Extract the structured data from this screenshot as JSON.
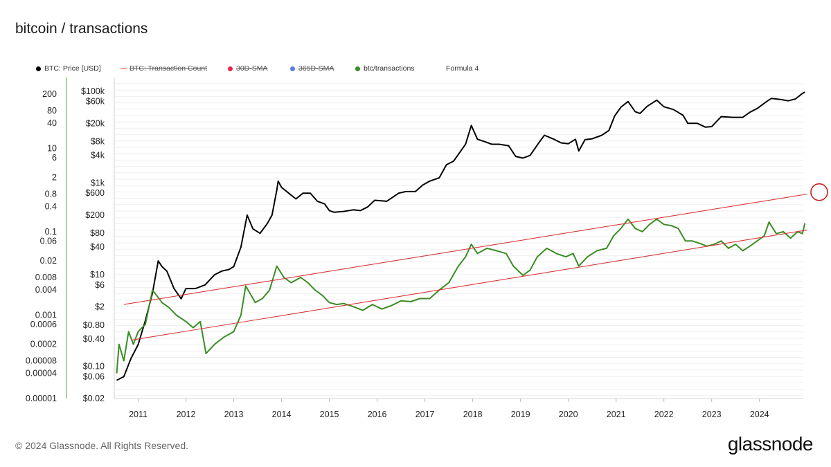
{
  "title": "bitcoin / transactions",
  "legend": [
    {
      "label": "BTC: Price [USD]",
      "color": "#000000",
      "marker": "dot",
      "struck": false
    },
    {
      "label": "BTC: Transaction Count",
      "color": "#f4a582",
      "marker": "dash",
      "struck": true
    },
    {
      "label": "30D-SMA",
      "color": "#e8254b",
      "marker": "dot",
      "struck": true
    },
    {
      "label": "365D-SMA",
      "color": "#5b7fe0",
      "marker": "dot",
      "struck": true
    },
    {
      "label": "btc/transactions",
      "color": "#3a8c24",
      "marker": "dot",
      "struck": false
    },
    {
      "label": "Formula 4",
      "color": "#ffffff",
      "marker": "none",
      "struck": false
    }
  ],
  "footer": "© 2024 Glassnode. All Rights Reserved.",
  "brand": "glassnode",
  "chart_data": {
    "type": "line",
    "x_ticks": [
      "2011",
      "2012",
      "2013",
      "2014",
      "2015",
      "2016",
      "2017",
      "2018",
      "2019",
      "2020",
      "2021",
      "2022",
      "2023",
      "2024"
    ],
    "xlim": [
      "2010-07",
      "2024-12"
    ],
    "y_left_ticks": [
      "200",
      "80",
      "40",
      "10",
      "6",
      "2",
      "0.8",
      "0.4",
      "0.1",
      "0.06",
      "0.02",
      "0.008",
      "0.004",
      "0.001",
      "0.0006",
      "0.0002",
      "0.00008",
      "0.00004",
      "0.00001"
    ],
    "y_left_range": [
      1e-05,
      500
    ],
    "y_price_ticks": [
      "$100k",
      "$60k",
      "$20k",
      "$8k",
      "$4k",
      "$1k",
      "$600",
      "$200",
      "$80",
      "$40",
      "$10",
      "$6",
      "$2",
      "$0.80",
      "$0.40",
      "$0.10",
      "$0.06",
      "$0.02"
    ],
    "y_price_range": [
      0.02,
      200000
    ],
    "scale": "log",
    "grid": true,
    "colors": {
      "price": "#000000",
      "ratio": "#3a8c24",
      "channel": "#d93636",
      "marker": "#cc1f1f"
    },
    "series": [
      {
        "name": "BTC: Price [USD]",
        "axis": "price",
        "points": [
          [
            2010.55,
            0.05
          ],
          [
            2010.7,
            0.06
          ],
          [
            2010.85,
            0.15
          ],
          [
            2011.0,
            0.3
          ],
          [
            2011.15,
            1.0
          ],
          [
            2011.3,
            4
          ],
          [
            2011.42,
            20
          ],
          [
            2011.5,
            15
          ],
          [
            2011.6,
            12
          ],
          [
            2011.75,
            5
          ],
          [
            2011.9,
            3
          ],
          [
            2012.0,
            5
          ],
          [
            2012.2,
            5
          ],
          [
            2012.4,
            6
          ],
          [
            2012.6,
            10
          ],
          [
            2012.75,
            12
          ],
          [
            2012.9,
            13
          ],
          [
            2013.0,
            15
          ],
          [
            2013.15,
            40
          ],
          [
            2013.28,
            200
          ],
          [
            2013.4,
            100
          ],
          [
            2013.55,
            80
          ],
          [
            2013.7,
            130
          ],
          [
            2013.8,
            200
          ],
          [
            2013.9,
            700
          ],
          [
            2013.93,
            1100
          ],
          [
            2014.0,
            800
          ],
          [
            2014.15,
            600
          ],
          [
            2014.3,
            450
          ],
          [
            2014.45,
            600
          ],
          [
            2014.6,
            600
          ],
          [
            2014.75,
            400
          ],
          [
            2014.9,
            350
          ],
          [
            2015.0,
            250
          ],
          [
            2015.1,
            230
          ],
          [
            2015.3,
            240
          ],
          [
            2015.5,
            260
          ],
          [
            2015.65,
            250
          ],
          [
            2015.8,
            300
          ],
          [
            2015.95,
            420
          ],
          [
            2016.2,
            400
          ],
          [
            2016.45,
            600
          ],
          [
            2016.6,
            650
          ],
          [
            2016.8,
            650
          ],
          [
            2016.95,
            900
          ],
          [
            2017.1,
            1100
          ],
          [
            2017.3,
            1300
          ],
          [
            2017.45,
            2500
          ],
          [
            2017.6,
            3000
          ],
          [
            2017.75,
            5000
          ],
          [
            2017.85,
            7000
          ],
          [
            2017.97,
            18000
          ],
          [
            2018.1,
            9000
          ],
          [
            2018.25,
            8000
          ],
          [
            2018.4,
            7000
          ],
          [
            2018.55,
            7000
          ],
          [
            2018.75,
            6500
          ],
          [
            2018.9,
            3800
          ],
          [
            2019.05,
            3500
          ],
          [
            2019.2,
            4000
          ],
          [
            2019.4,
            8000
          ],
          [
            2019.5,
            11000
          ],
          [
            2019.7,
            9000
          ],
          [
            2019.85,
            7500
          ],
          [
            2020.0,
            7200
          ],
          [
            2020.15,
            9000
          ],
          [
            2020.22,
            5000
          ],
          [
            2020.35,
            8800
          ],
          [
            2020.5,
            9200
          ],
          [
            2020.7,
            11000
          ],
          [
            2020.85,
            14000
          ],
          [
            2020.97,
            29000
          ],
          [
            2021.1,
            45000
          ],
          [
            2021.25,
            60000
          ],
          [
            2021.4,
            36000
          ],
          [
            2021.5,
            33000
          ],
          [
            2021.65,
            47000
          ],
          [
            2021.85,
            64000
          ],
          [
            2022.0,
            46000
          ],
          [
            2022.2,
            40000
          ],
          [
            2022.4,
            30000
          ],
          [
            2022.5,
            20000
          ],
          [
            2022.7,
            20000
          ],
          [
            2022.87,
            16500
          ],
          [
            2023.0,
            17000
          ],
          [
            2023.2,
            28000
          ],
          [
            2023.45,
            27000
          ],
          [
            2023.65,
            27000
          ],
          [
            2023.8,
            35000
          ],
          [
            2023.95,
            42000
          ],
          [
            2024.15,
            60000
          ],
          [
            2024.25,
            70000
          ],
          [
            2024.45,
            66000
          ],
          [
            2024.6,
            62000
          ],
          [
            2024.75,
            68000
          ],
          [
            2024.9,
            90000
          ],
          [
            2024.95,
            96000
          ]
        ]
      },
      {
        "name": "btc/transactions",
        "axis": "left",
        "points": [
          [
            2010.55,
            4e-05
          ],
          [
            2010.6,
            0.0002
          ],
          [
            2010.7,
            8e-05
          ],
          [
            2010.8,
            0.0004
          ],
          [
            2010.9,
            0.0002
          ],
          [
            2011.0,
            0.0004
          ],
          [
            2011.15,
            0.0006
          ],
          [
            2011.3,
            0.004
          ],
          [
            2011.5,
            0.002
          ],
          [
            2011.65,
            0.0015
          ],
          [
            2011.8,
            0.001
          ],
          [
            2012.0,
            0.0007
          ],
          [
            2012.15,
            0.0005
          ],
          [
            2012.3,
            0.0007
          ],
          [
            2012.42,
            0.00012
          ],
          [
            2012.6,
            0.0002
          ],
          [
            2012.8,
            0.0003
          ],
          [
            2013.0,
            0.0004
          ],
          [
            2013.15,
            0.001
          ],
          [
            2013.25,
            0.005
          ],
          [
            2013.45,
            0.002
          ],
          [
            2013.6,
            0.0025
          ],
          [
            2013.75,
            0.004
          ],
          [
            2013.9,
            0.015
          ],
          [
            2014.05,
            0.008
          ],
          [
            2014.2,
            0.006
          ],
          [
            2014.4,
            0.008
          ],
          [
            2014.55,
            0.006
          ],
          [
            2014.7,
            0.004
          ],
          [
            2014.85,
            0.003
          ],
          [
            2015.0,
            0.002
          ],
          [
            2015.15,
            0.0018
          ],
          [
            2015.3,
            0.0019
          ],
          [
            2015.5,
            0.0016
          ],
          [
            2015.7,
            0.0013
          ],
          [
            2015.9,
            0.0018
          ],
          [
            2016.1,
            0.0014
          ],
          [
            2016.3,
            0.0017
          ],
          [
            2016.5,
            0.0022
          ],
          [
            2016.7,
            0.0021
          ],
          [
            2016.9,
            0.0025
          ],
          [
            2017.1,
            0.0025
          ],
          [
            2017.3,
            0.004
          ],
          [
            2017.5,
            0.006
          ],
          [
            2017.7,
            0.015
          ],
          [
            2017.85,
            0.025
          ],
          [
            2017.97,
            0.05
          ],
          [
            2018.1,
            0.03
          ],
          [
            2018.3,
            0.04
          ],
          [
            2018.5,
            0.035
          ],
          [
            2018.7,
            0.03
          ],
          [
            2018.85,
            0.015
          ],
          [
            2019.05,
            0.009
          ],
          [
            2019.2,
            0.012
          ],
          [
            2019.35,
            0.025
          ],
          [
            2019.55,
            0.04
          ],
          [
            2019.75,
            0.03
          ],
          [
            2019.95,
            0.025
          ],
          [
            2020.1,
            0.03
          ],
          [
            2020.22,
            0.015
          ],
          [
            2020.4,
            0.025
          ],
          [
            2020.6,
            0.035
          ],
          [
            2020.8,
            0.04
          ],
          [
            2020.95,
            0.08
          ],
          [
            2021.1,
            0.12
          ],
          [
            2021.25,
            0.2
          ],
          [
            2021.4,
            0.12
          ],
          [
            2021.55,
            0.1
          ],
          [
            2021.7,
            0.15
          ],
          [
            2021.85,
            0.2
          ],
          [
            2022.0,
            0.15
          ],
          [
            2022.15,
            0.14
          ],
          [
            2022.3,
            0.12
          ],
          [
            2022.45,
            0.06
          ],
          [
            2022.6,
            0.06
          ],
          [
            2022.8,
            0.05
          ],
          [
            2022.9,
            0.045
          ],
          [
            2023.05,
            0.05
          ],
          [
            2023.2,
            0.06
          ],
          [
            2023.35,
            0.04
          ],
          [
            2023.5,
            0.05
          ],
          [
            2023.65,
            0.035
          ],
          [
            2023.8,
            0.045
          ],
          [
            2023.95,
            0.06
          ],
          [
            2024.1,
            0.08
          ],
          [
            2024.2,
            0.17
          ],
          [
            2024.35,
            0.09
          ],
          [
            2024.5,
            0.1
          ],
          [
            2024.65,
            0.07
          ],
          [
            2024.8,
            0.1
          ],
          [
            2024.9,
            0.09
          ],
          [
            2024.95,
            0.16
          ]
        ]
      },
      {
        "name": "channel-upper",
        "axis": "left",
        "points": [
          [
            2010.7,
            0.0018
          ],
          [
            2025.0,
            0.8
          ]
        ]
      },
      {
        "name": "channel-lower",
        "axis": "left",
        "points": [
          [
            2010.85,
            0.00025
          ],
          [
            2025.0,
            0.11
          ]
        ]
      }
    ]
  }
}
